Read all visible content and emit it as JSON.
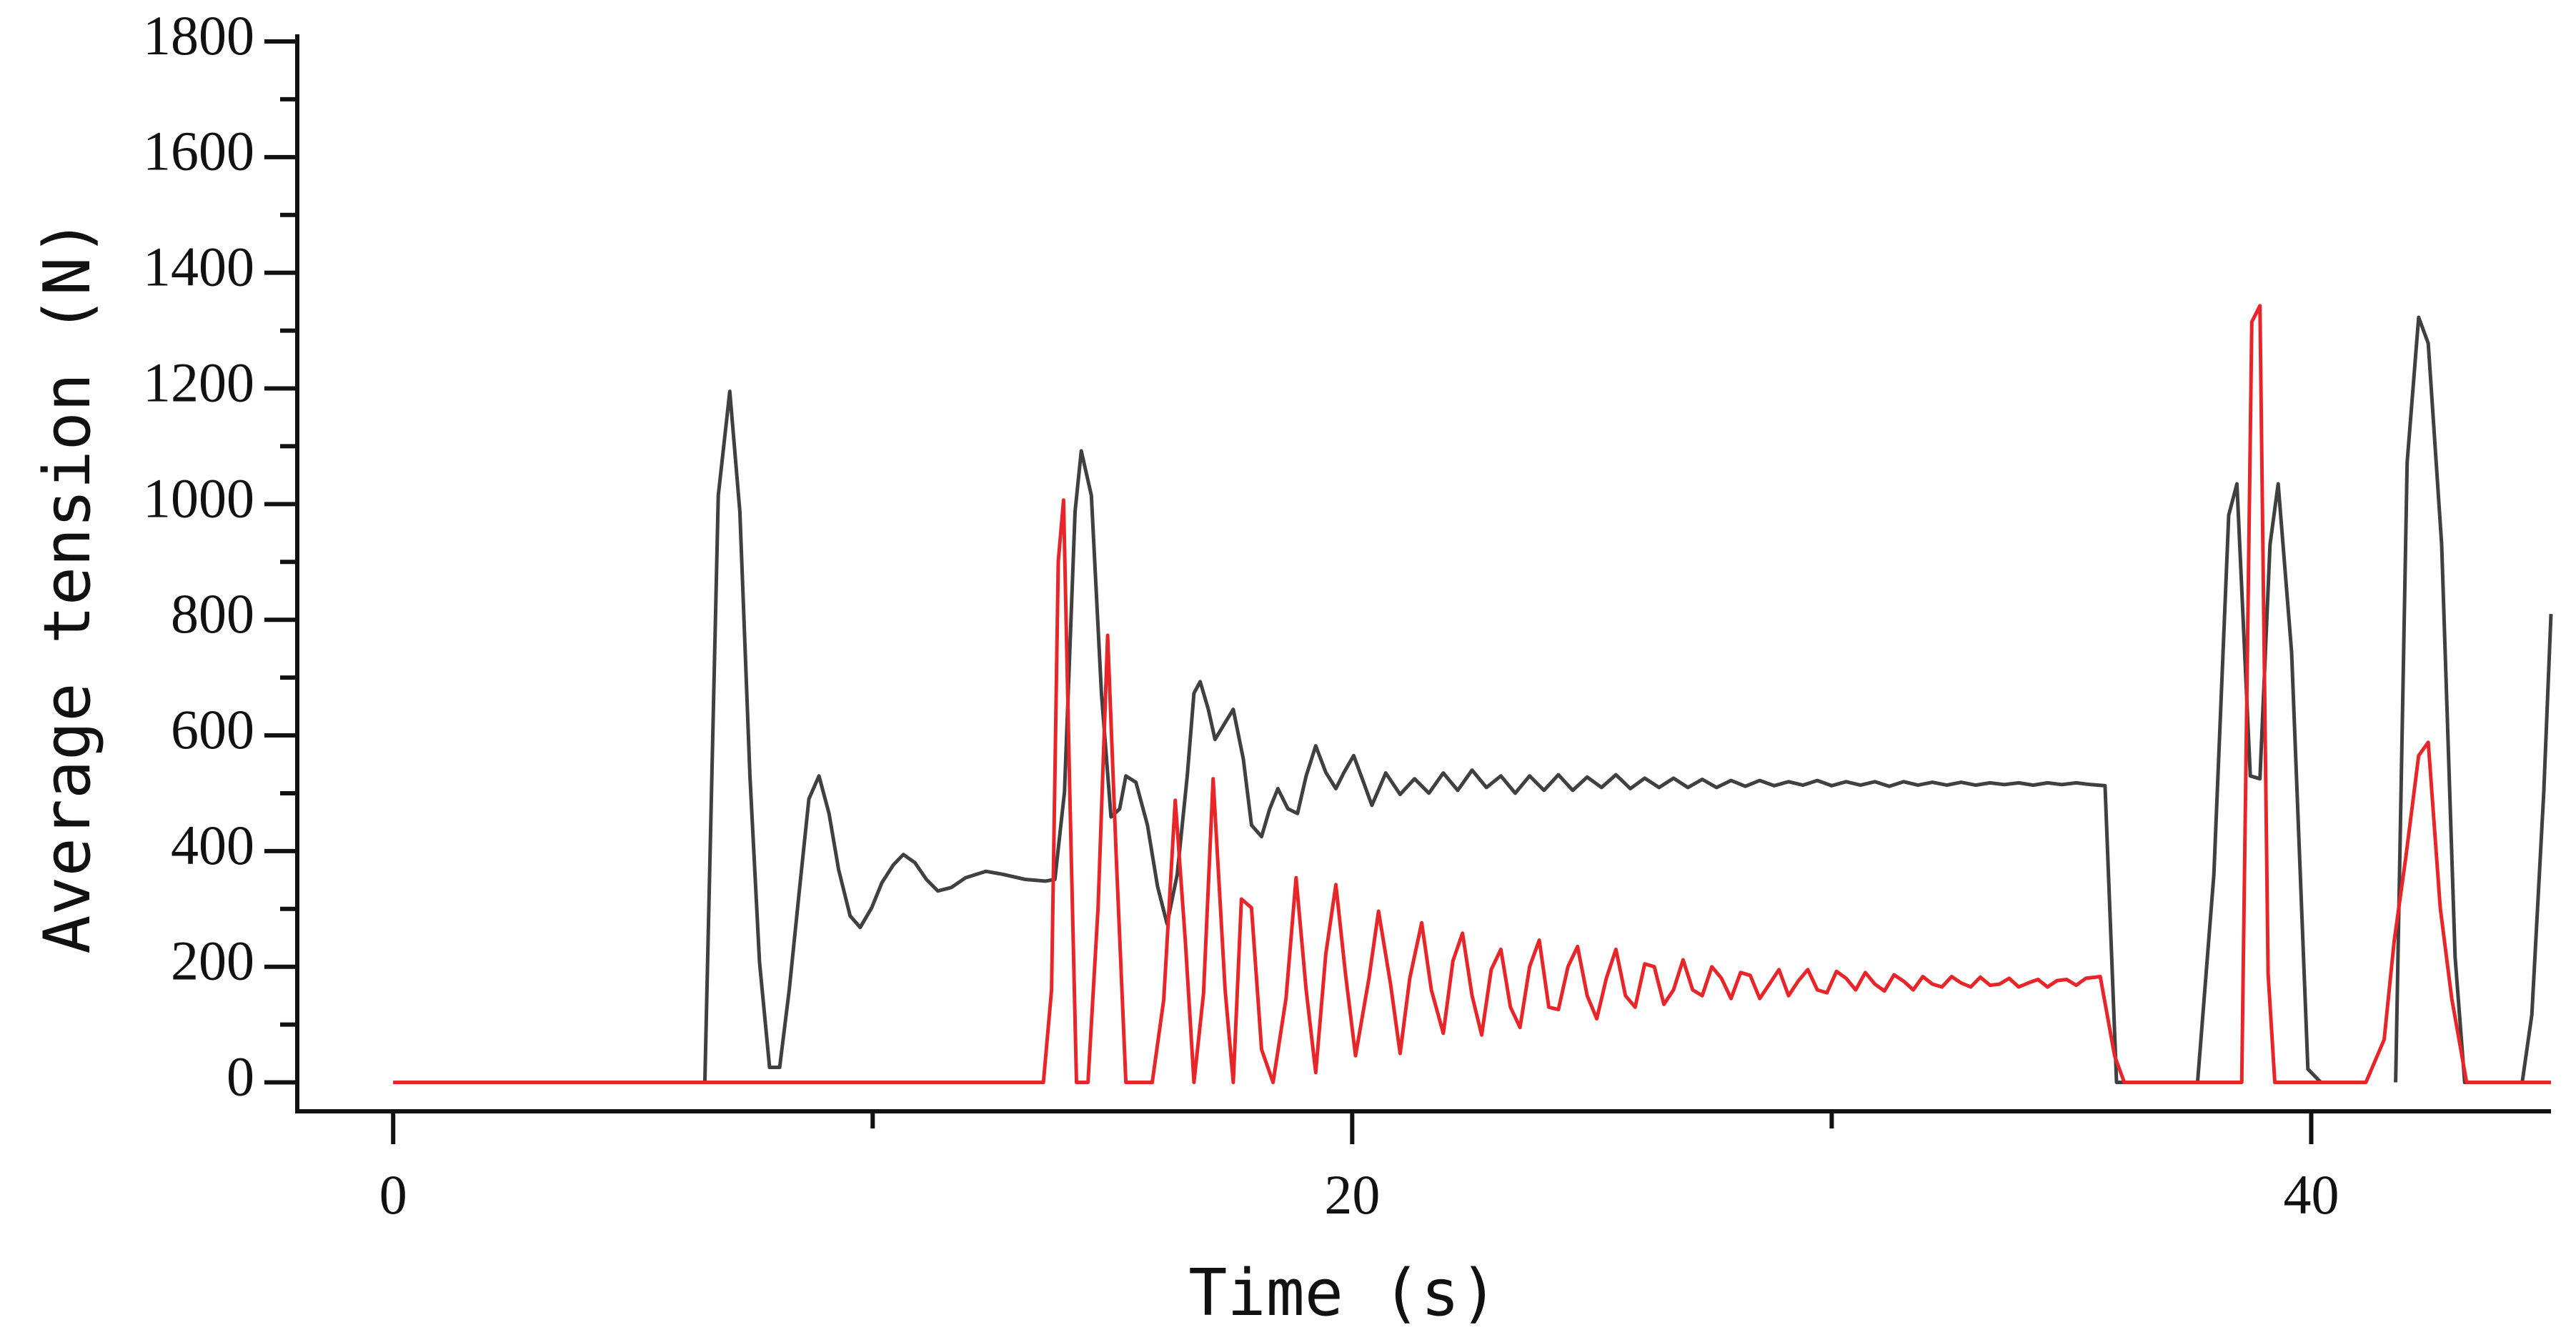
{
  "chart_data": {
    "type": "line",
    "xlabel": "Time (s)",
    "ylabel": "Average tension (N)",
    "xlim": [
      -2,
      45
    ],
    "xticks": [
      0,
      20,
      40
    ],
    "xminorticks": [
      10,
      30
    ],
    "ylim": [
      -50,
      1800
    ],
    "yticks": [
      0,
      200,
      400,
      600,
      800,
      1000,
      1200,
      1400,
      1600,
      1800
    ],
    "yminorticks": [
      100,
      300,
      500,
      700,
      900,
      1100,
      1300,
      1500,
      1700
    ],
    "series": [
      {
        "color": "#404040",
        "x": [
          0,
          6.5,
          6.78,
          7.02,
          7.23,
          7.44,
          7.64,
          7.85,
          8.06,
          8.26,
          8.47,
          8.67,
          8.88,
          9.09,
          9.29,
          9.53,
          9.74,
          9.98,
          10.19,
          10.43,
          10.64,
          10.88,
          11.12,
          11.36,
          11.64,
          11.94,
          12.36,
          12.7,
          13.18,
          13.6,
          13.8,
          14.0,
          14.22,
          14.35,
          14.56,
          14.77,
          14.97,
          15.15,
          15.28,
          15.49,
          15.73,
          15.94,
          16.14,
          16.35,
          16.56,
          16.7,
          16.83,
          17.0,
          17.14,
          17.35,
          17.52,
          17.73,
          17.9,
          18.11,
          18.28,
          18.45,
          18.66,
          18.86,
          19.04,
          19.24,
          19.45,
          19.66,
          19.83,
          20.03,
          20.21,
          20.41,
          20.7,
          21.0,
          21.3,
          21.6,
          21.9,
          22.2,
          22.5,
          22.8,
          23.1,
          23.4,
          23.7,
          24.0,
          24.3,
          24.6,
          24.9,
          25.2,
          25.5,
          25.8,
          26.1,
          26.4,
          26.7,
          27.0,
          27.3,
          27.6,
          27.9,
          28.2,
          28.5,
          28.8,
          29.1,
          29.4,
          29.7,
          30.0,
          30.3,
          30.6,
          30.9,
          31.2,
          31.5,
          31.8,
          32.1,
          32.4,
          32.7,
          33.0,
          33.3,
          33.6,
          33.9,
          34.2,
          34.5,
          34.8,
          35.1,
          35.4,
          35.7,
          35.94,
          37.63,
          37.97,
          38.28,
          38.45,
          38.73,
          38.93,
          39.14,
          39.31,
          39.59,
          39.93,
          40.2
        ],
        "values": [
          0,
          0,
          1015,
          1195,
          987,
          530,
          208,
          26,
          26,
          160,
          331,
          490,
          530,
          465,
          368,
          288,
          268,
          302,
          345,
          376,
          394,
          380,
          351,
          331,
          337,
          354,
          365,
          360,
          351,
          348,
          351,
          502,
          987,
          1092,
          1015,
          673,
          459,
          473,
          530,
          519,
          445,
          339,
          274,
          359,
          530,
          673,
          693,
          645,
          593,
          622,
          645,
          559,
          445,
          425,
          473,
          508,
          473,
          465,
          530,
          582,
          536,
          508,
          536,
          565,
          525,
          479,
          535,
          498,
          525,
          500,
          535,
          505,
          540,
          510,
          530,
          500,
          530,
          505,
          532,
          505,
          528,
          510,
          532,
          508,
          526,
          510,
          526,
          510,
          524,
          510,
          522,
          512,
          522,
          513,
          520,
          514,
          522,
          513,
          520,
          514,
          520,
          512,
          520,
          514,
          519,
          514,
          519,
          514,
          518,
          515,
          518,
          514,
          518,
          515,
          518,
          515,
          513,
          0,
          0,
          359,
          981,
          1035,
          530,
          525,
          930,
          1035,
          744,
          23,
          0
        ]
      },
      {
        "color": "#404040",
        "x": [
          41.76,
          42.0,
          42.24,
          42.44,
          42.72,
          43.0,
          43.2,
          44.4,
          44.6,
          44.85,
          45.0
        ],
        "values": [
          0,
          1072,
          1323,
          1278,
          930,
          217,
          0,
          0,
          117,
          502,
          810
        ]
      },
      {
        "color": "#e8262a",
        "x": [
          0,
          13.56,
          13.73,
          13.87,
          13.98,
          14.11,
          14.25,
          14.49,
          14.7,
          14.9,
          15.08,
          15.28,
          15.83,
          16.07,
          16.31,
          16.52,
          16.7,
          16.9,
          17.1,
          17.35,
          17.52,
          17.69,
          17.9,
          18.11,
          18.35,
          18.62,
          18.83,
          19.04,
          19.24,
          19.45,
          19.66,
          19.86,
          20.07,
          20.35,
          20.55,
          20.8,
          21.0,
          21.2,
          21.45,
          21.65,
          21.9,
          22.1,
          22.3,
          22.5,
          22.7,
          22.9,
          23.1,
          23.3,
          23.5,
          23.7,
          23.9,
          24.1,
          24.3,
          24.5,
          24.7,
          24.9,
          25.1,
          25.3,
          25.5,
          25.7,
          25.9,
          26.1,
          26.3,
          26.5,
          26.7,
          26.9,
          27.1,
          27.3,
          27.5,
          27.7,
          27.9,
          28.1,
          28.3,
          28.5,
          28.7,
          28.9,
          29.1,
          29.3,
          29.5,
          29.7,
          29.9,
          30.1,
          30.3,
          30.5,
          30.7,
          30.9,
          31.1,
          31.3,
          31.5,
          31.7,
          31.9,
          32.1,
          32.3,
          32.5,
          32.7,
          32.9,
          33.1,
          33.3,
          33.5,
          33.7,
          33.9,
          34.1,
          34.3,
          34.5,
          34.7,
          34.9,
          35.1,
          35.3,
          35.6,
          35.9,
          36.1,
          38.55,
          38.76,
          38.93,
          39.1,
          39.24,
          41.14,
          41.52,
          41.73,
          41.97,
          42.24,
          42.44,
          42.69,
          42.93,
          43.24,
          45.0
        ],
        "values": [
          0,
          0,
          160,
          901,
          1007,
          502,
          0,
          0,
          302,
          773,
          388,
          0,
          0,
          143,
          488,
          245,
          0,
          154,
          525,
          160,
          0,
          317,
          302,
          57,
          0,
          145,
          354,
          160,
          17,
          222,
          342,
          188,
          46,
          180,
          296,
          170,
          50,
          180,
          276,
          160,
          85,
          210,
          258,
          150,
          82,
          195,
          230,
          130,
          95,
          200,
          246,
          130,
          126,
          200,
          235,
          150,
          110,
          180,
          230,
          150,
          130,
          205,
          200,
          135,
          160,
          212,
          160,
          150,
          200,
          180,
          145,
          190,
          185,
          145,
          170,
          195,
          150,
          175,
          195,
          160,
          155,
          192,
          180,
          160,
          190,
          170,
          158,
          186,
          175,
          160,
          183,
          170,
          165,
          183,
          172,
          165,
          182,
          168,
          170,
          180,
          165,
          172,
          178,
          165,
          176,
          178,
          168,
          180,
          183,
          46,
          0,
          0,
          1315,
          1343,
          188,
          0,
          0,
          74,
          245,
          388,
          565,
          588,
          302,
          145,
          0,
          0
        ]
      }
    ]
  }
}
